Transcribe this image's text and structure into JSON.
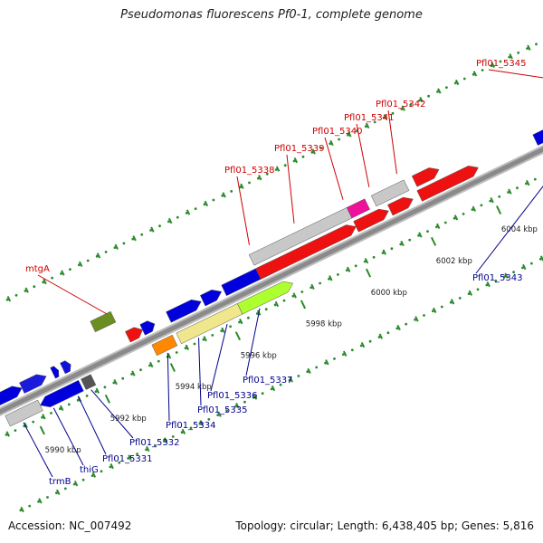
{
  "title": "Pseudomonas fluorescens Pf0-1, complete genome",
  "footer": {
    "accession": "Accession: NC_007492",
    "summary": "Topology: circular; Length: 6,438,405 bp; Genes: 5,816"
  },
  "colors": {
    "backbone": "#8a8a8a",
    "tick": "#2c8a2c",
    "label_top": "#cc0000",
    "label_bottom": "#00008b"
  },
  "scale_labels": [
    "5990 kbp",
    "5992 kbp",
    "5994 kbp",
    "5996 kbp",
    "5998 kbp",
    "6000 kbp",
    "6002 kbp",
    "6004 kbp"
  ],
  "gene_labels_top": [
    "mtgA",
    "Pfl01_5338",
    "Pfl01_5339",
    "Pfl01_5340",
    "Pfl01_5341",
    "Pfl01_5342",
    "Pfl01_5345"
  ],
  "gene_labels_bottom": [
    "trmB",
    "thiG",
    "Pfl01_5331",
    "Pfl01_5332",
    "Pfl01_5334",
    "Pfl01_5335",
    "Pfl01_5336",
    "Pfl01_5337",
    "Pfl01_5343"
  ]
}
